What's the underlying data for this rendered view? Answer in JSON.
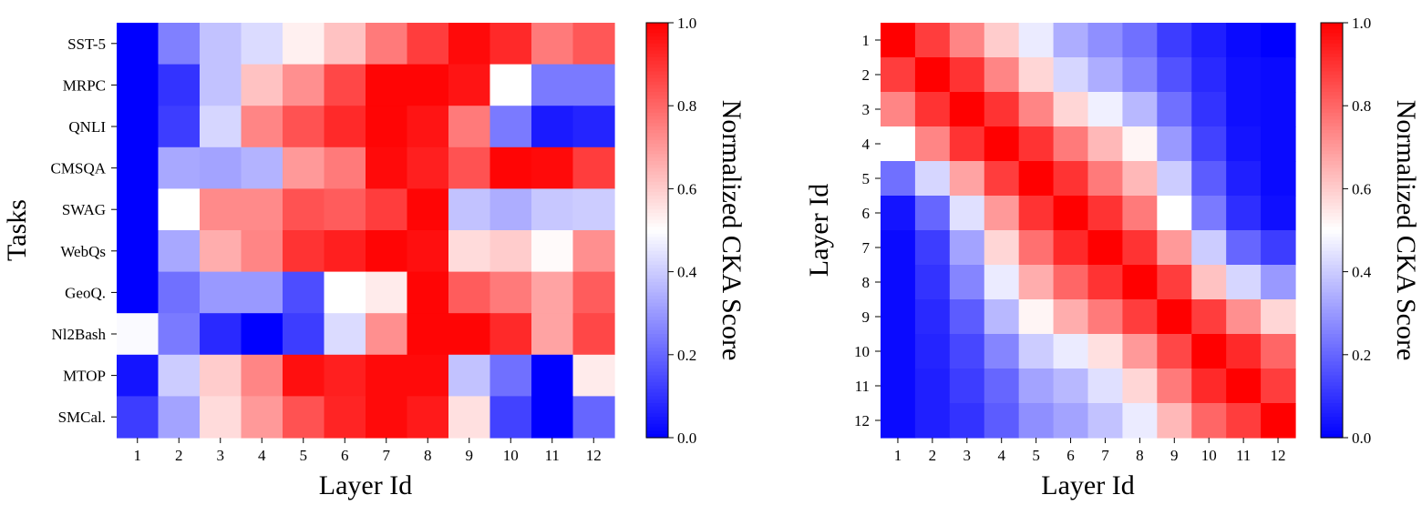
{
  "colorscale": {
    "low": "#0000ff",
    "mid": "#ffffff",
    "high": "#ff0000"
  },
  "chart_data": [
    {
      "type": "heatmap",
      "xlabel": "Layer Id",
      "ylabel": "Tasks",
      "colorbar_label": "Normalized CKA Score",
      "colorbar_ticks": [
        "0.0",
        "0.2",
        "0.4",
        "0.6",
        "0.8",
        "1.0"
      ],
      "zlim": [
        0,
        1
      ],
      "x": [
        "1",
        "2",
        "3",
        "4",
        "5",
        "6",
        "7",
        "8",
        "9",
        "10",
        "11",
        "12"
      ],
      "y": [
        "SST-5",
        "MRPC",
        "QNLI",
        "CMSQA",
        "SWAG",
        "WebQs",
        "GeoQ.",
        "Nl2Bash",
        "MTOP",
        "SMCal."
      ],
      "values": [
        [
          0.0,
          0.25,
          0.38,
          0.43,
          0.53,
          0.62,
          0.76,
          0.88,
          0.98,
          0.92,
          0.76,
          0.83
        ],
        [
          0.0,
          0.1,
          0.38,
          0.62,
          0.72,
          0.86,
          0.99,
          0.99,
          0.96,
          0.5,
          0.24,
          0.24
        ],
        [
          0.0,
          0.12,
          0.42,
          0.74,
          0.84,
          0.92,
          0.99,
          0.96,
          0.76,
          0.24,
          0.05,
          0.07
        ],
        [
          0.0,
          0.33,
          0.32,
          0.35,
          0.7,
          0.76,
          0.98,
          0.94,
          0.84,
          0.99,
          0.98,
          0.88
        ],
        [
          0.0,
          0.5,
          0.73,
          0.73,
          0.84,
          0.82,
          0.88,
          0.99,
          0.38,
          0.34,
          0.39,
          0.4
        ],
        [
          0.0,
          0.33,
          0.66,
          0.74,
          0.9,
          0.94,
          0.99,
          0.97,
          0.57,
          0.6,
          0.51,
          0.72
        ],
        [
          0.0,
          0.22,
          0.3,
          0.3,
          0.15,
          0.5,
          0.54,
          0.99,
          0.82,
          0.76,
          0.68,
          0.82
        ],
        [
          0.49,
          0.24,
          0.08,
          0.0,
          0.12,
          0.43,
          0.72,
          0.99,
          0.99,
          0.92,
          0.68,
          0.86
        ],
        [
          0.04,
          0.4,
          0.6,
          0.74,
          0.97,
          0.94,
          0.98,
          0.98,
          0.38,
          0.22,
          0.0,
          0.54
        ],
        [
          0.12,
          0.32,
          0.57,
          0.7,
          0.84,
          0.93,
          0.98,
          0.95,
          0.56,
          0.13,
          0.0,
          0.2
        ]
      ]
    },
    {
      "type": "heatmap",
      "xlabel": "Layer Id",
      "ylabel": "Layer Id",
      "colorbar_label": "Normalized CKA Score",
      "colorbar_ticks": [
        "0.0",
        "0.2",
        "0.4",
        "0.6",
        "0.8",
        "1.0"
      ],
      "zlim": [
        0,
        1
      ],
      "x": [
        "1",
        "2",
        "3",
        "4",
        "5",
        "6",
        "7",
        "8",
        "9",
        "10",
        "11",
        "12"
      ],
      "y": [
        "1",
        "2",
        "3",
        "4",
        "5",
        "6",
        "7",
        "8",
        "9",
        "10",
        "11",
        "12"
      ],
      "values": [
        [
          1.0,
          0.88,
          0.74,
          0.6,
          0.46,
          0.34,
          0.28,
          0.22,
          0.12,
          0.06,
          0.02,
          0.0
        ],
        [
          0.88,
          1.0,
          0.9,
          0.74,
          0.58,
          0.42,
          0.34,
          0.26,
          0.16,
          0.08,
          0.03,
          0.02
        ],
        [
          0.74,
          0.9,
          1.0,
          0.9,
          0.74,
          0.58,
          0.47,
          0.36,
          0.22,
          0.1,
          0.03,
          0.02
        ],
        [
          0.5,
          0.74,
          0.9,
          1.0,
          0.9,
          0.76,
          0.64,
          0.52,
          0.3,
          0.13,
          0.04,
          0.02
        ],
        [
          0.22,
          0.42,
          0.68,
          0.88,
          1.0,
          0.9,
          0.76,
          0.64,
          0.4,
          0.18,
          0.06,
          0.02
        ],
        [
          0.04,
          0.2,
          0.44,
          0.7,
          0.9,
          1.0,
          0.9,
          0.76,
          0.5,
          0.24,
          0.09,
          0.03
        ],
        [
          0.02,
          0.12,
          0.32,
          0.58,
          0.78,
          0.92,
          1.0,
          0.9,
          0.7,
          0.4,
          0.2,
          0.12
        ],
        [
          0.02,
          0.1,
          0.26,
          0.46,
          0.66,
          0.8,
          0.9,
          1.0,
          0.88,
          0.62,
          0.42,
          0.3
        ],
        [
          0.02,
          0.08,
          0.18,
          0.36,
          0.52,
          0.66,
          0.76,
          0.88,
          1.0,
          0.88,
          0.72,
          0.58
        ],
        [
          0.02,
          0.07,
          0.14,
          0.26,
          0.4,
          0.46,
          0.56,
          0.7,
          0.86,
          1.0,
          0.92,
          0.8
        ],
        [
          0.02,
          0.06,
          0.12,
          0.2,
          0.32,
          0.36,
          0.44,
          0.58,
          0.76,
          0.92,
          1.0,
          0.88
        ],
        [
          0.02,
          0.06,
          0.1,
          0.18,
          0.28,
          0.32,
          0.38,
          0.46,
          0.64,
          0.8,
          0.88,
          1.0
        ]
      ]
    }
  ]
}
